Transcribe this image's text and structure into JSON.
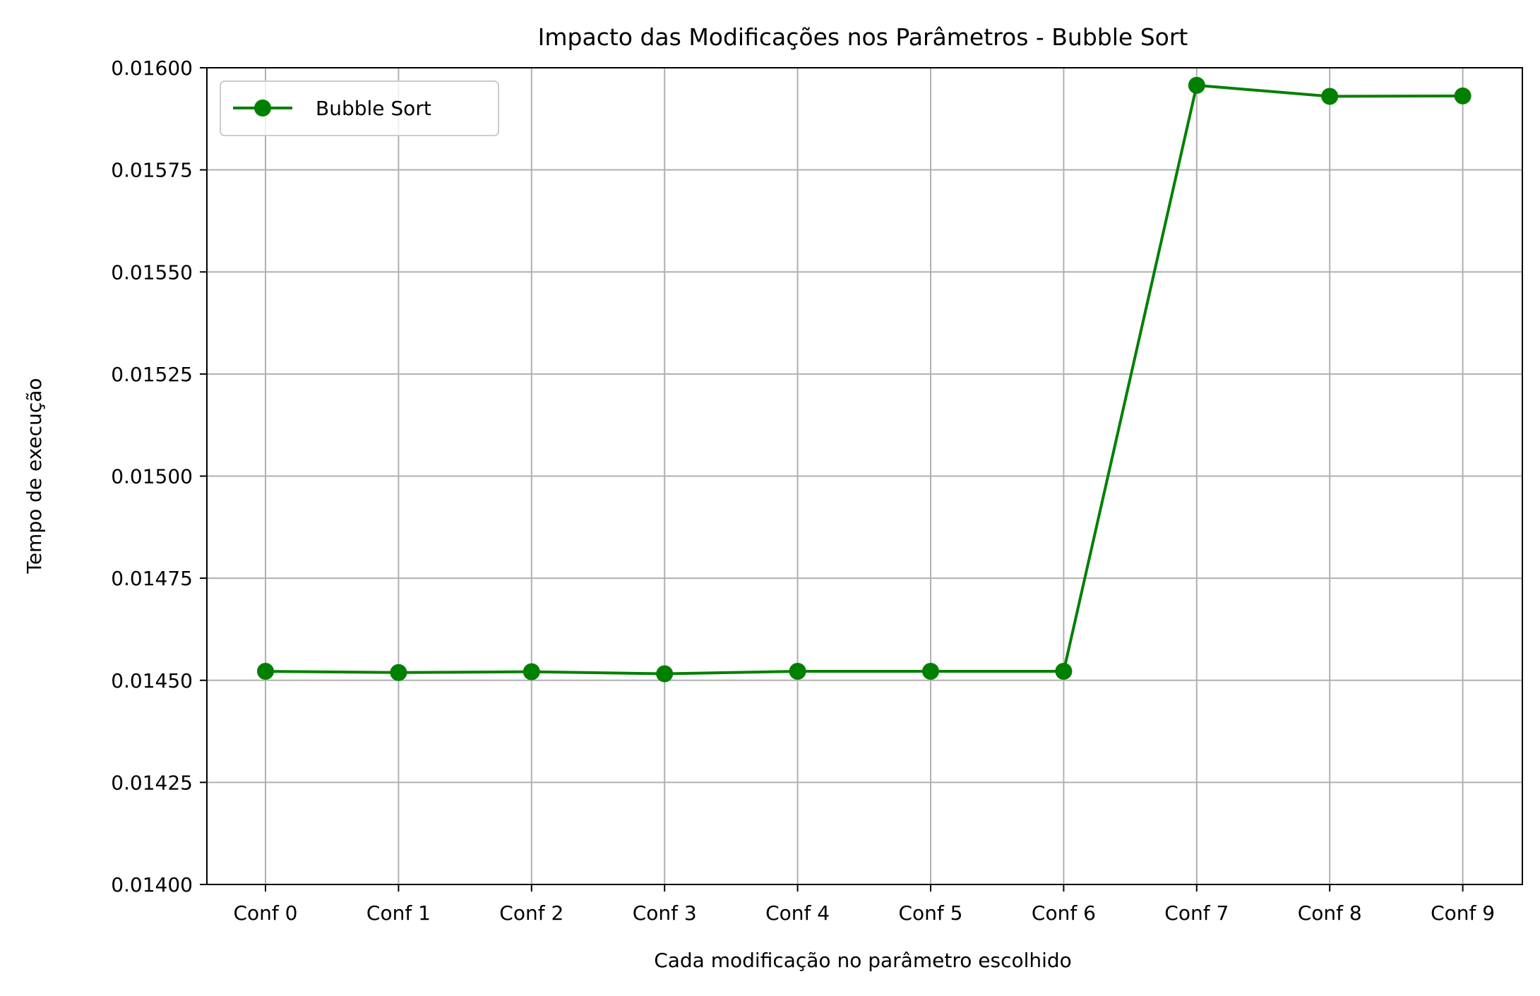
{
  "chart_data": {
    "type": "line",
    "title": "Impacto das Modificações nos Parâmetros - Bubble Sort",
    "xlabel": "Cada modificação no parâmetro escolhido",
    "ylabel": "Tempo de execução",
    "categories": [
      "Conf 0",
      "Conf 1",
      "Conf 2",
      "Conf 3",
      "Conf 4",
      "Conf 5",
      "Conf 6",
      "Conf 7",
      "Conf 8",
      "Conf 9"
    ],
    "series": [
      {
        "name": "Bubble Sort",
        "color": "#008000",
        "marker": "circle",
        "values": [
          0.014522,
          0.014519,
          0.014521,
          0.014516,
          0.014522,
          0.014522,
          0.014522,
          0.015957,
          0.01593,
          0.015931
        ]
      }
    ],
    "ylim": [
      0.014,
      0.016
    ],
    "yticks": [
      "0.01400",
      "0.01425",
      "0.01450",
      "0.01475",
      "0.01500",
      "0.01525",
      "0.01550",
      "0.01575",
      "0.01600"
    ],
    "grid": true,
    "legend_position": "upper-left"
  }
}
